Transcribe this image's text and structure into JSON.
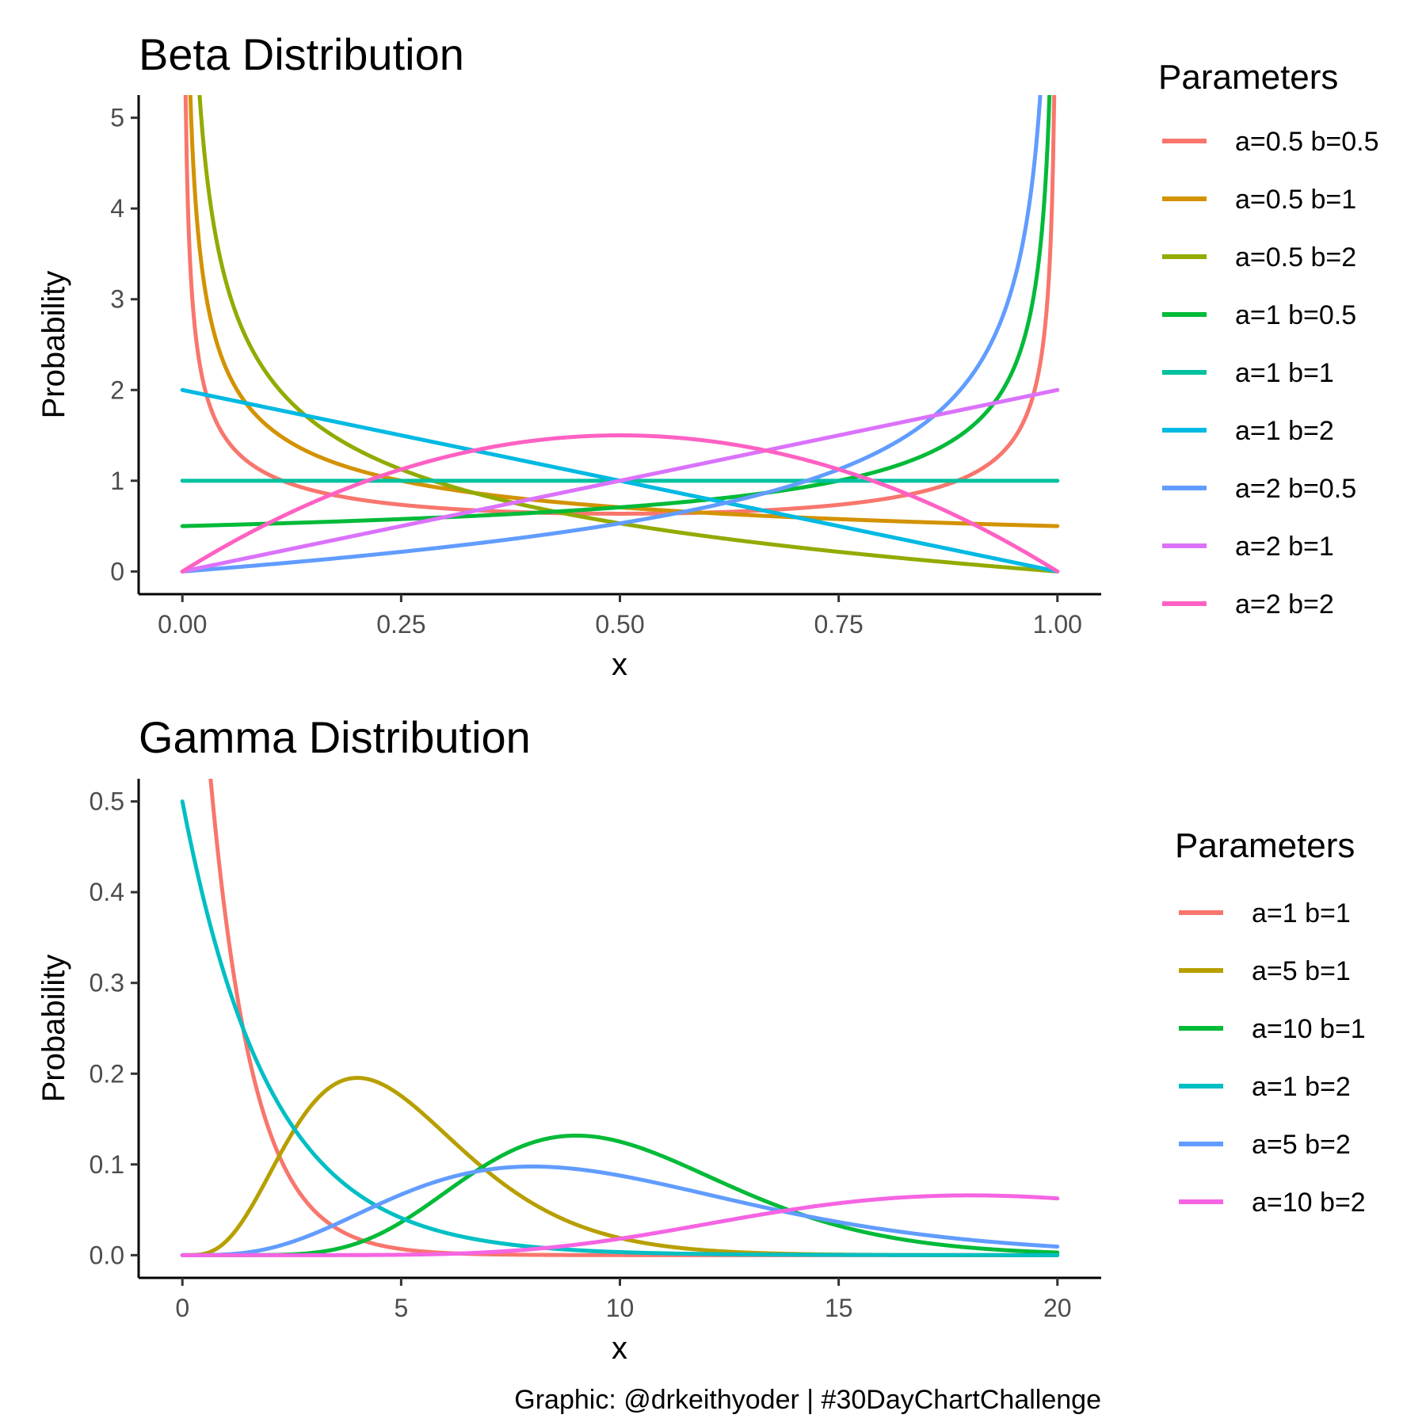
{
  "caption": "Graphic: @drkeithyoder | #30DayChartChallenge",
  "chart_data": [
    {
      "type": "line",
      "title": "Beta Distribution",
      "xlabel": "x",
      "ylabel": "Probability",
      "xlim": [
        -0.05,
        1.05
      ],
      "ylim": [
        -0.25,
        5.25
      ],
      "xticks": [
        0,
        0.25,
        0.5,
        0.75,
        1
      ],
      "xtick_labels": [
        "0.00",
        "0.25",
        "0.50",
        "0.75",
        "1.00"
      ],
      "yticks": [
        0,
        1,
        2,
        3,
        4,
        5
      ],
      "ytick_labels": [
        "0",
        "1",
        "2",
        "3",
        "4",
        "5"
      ],
      "grid": false,
      "legend": {
        "title": "Parameters",
        "position": "right"
      },
      "series": [
        {
          "name": "a=0.5 b=0.5",
          "a": 0.5,
          "b": 0.5,
          "color": "#F8766D"
        },
        {
          "name": "a=0.5 b=1",
          "a": 0.5,
          "b": 1,
          "color": "#D39200"
        },
        {
          "name": "a=0.5 b=2",
          "a": 0.5,
          "b": 2,
          "color": "#93AA00"
        },
        {
          "name": "a=1 b=0.5",
          "a": 1,
          "b": 0.5,
          "color": "#00BA38"
        },
        {
          "name": "a=1 b=1",
          "a": 1,
          "b": 1,
          "color": "#00C19F"
        },
        {
          "name": "a=1 b=2",
          "a": 1,
          "b": 2,
          "color": "#00B9E3"
        },
        {
          "name": "a=2 b=0.5",
          "a": 2,
          "b": 0.5,
          "color": "#619CFF"
        },
        {
          "name": "a=2 b=1",
          "a": 2,
          "b": 1,
          "color": "#DB72FB"
        },
        {
          "name": "a=2 b=2",
          "a": 2,
          "b": 2,
          "color": "#FF61C3"
        }
      ]
    },
    {
      "type": "line",
      "title": "Gamma Distribution",
      "xlabel": "x",
      "ylabel": "Probability",
      "xlim": [
        -1,
        21
      ],
      "ylim": [
        -0.025,
        0.525
      ],
      "xticks": [
        0,
        5,
        10,
        15,
        20
      ],
      "xtick_labels": [
        "0",
        "5",
        "10",
        "15",
        "20"
      ],
      "yticks": [
        0,
        0.1,
        0.2,
        0.3,
        0.4,
        0.5
      ],
      "ytick_labels": [
        "0.0",
        "0.1",
        "0.2",
        "0.3",
        "0.4",
        "0.5"
      ],
      "grid": false,
      "legend": {
        "title": "Parameters",
        "position": "right"
      },
      "series": [
        {
          "name": "a=1 b=1",
          "a": 1,
          "b": 1,
          "color": "#F8766D"
        },
        {
          "name": "a=5 b=1",
          "a": 5,
          "b": 1,
          "color": "#B79F00"
        },
        {
          "name": "a=10 b=1",
          "a": 10,
          "b": 1,
          "color": "#00BA38"
        },
        {
          "name": "a=1 b=2",
          "a": 1,
          "b": 2,
          "color": "#00BFC4"
        },
        {
          "name": "a=5 b=2",
          "a": 5,
          "b": 2,
          "color": "#619CFF"
        },
        {
          "name": "a=10 b=2",
          "a": 10,
          "b": 2,
          "color": "#F564E3"
        }
      ]
    }
  ]
}
